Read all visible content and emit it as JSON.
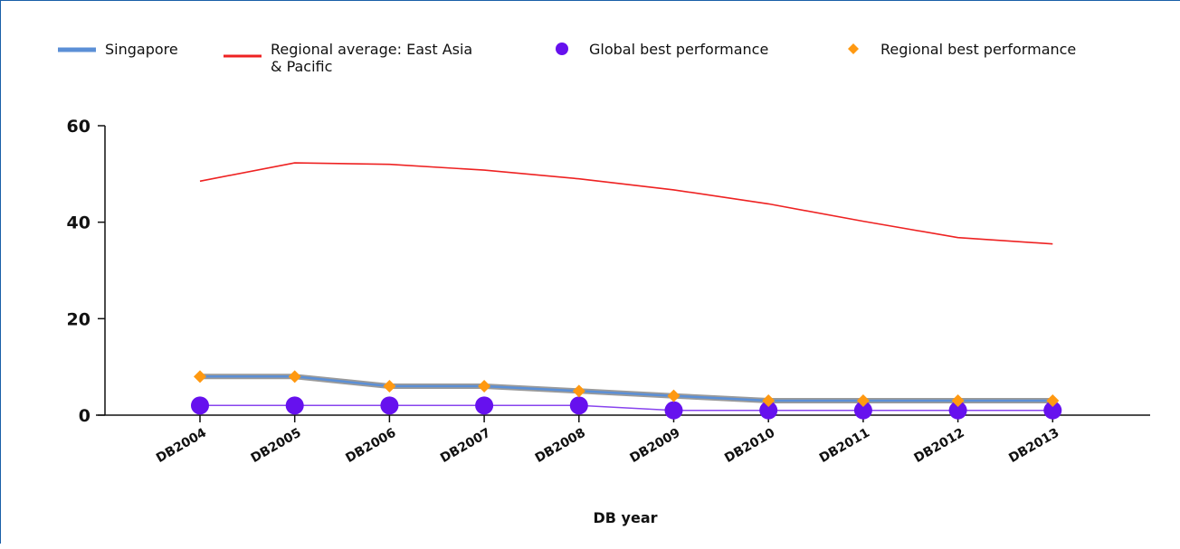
{
  "chart_data": {
    "type": "line",
    "title": "",
    "xlabel": "DB year",
    "ylabel": "",
    "ylim": [
      0,
      60
    ],
    "yticks": [
      0,
      20,
      40,
      60
    ],
    "grid": false,
    "legend_position": "top",
    "categories": [
      "DB2004",
      "DB2005",
      "DB2006",
      "DB2007",
      "DB2008",
      "DB2009",
      "DB2010",
      "DB2011",
      "DB2012",
      "DB2013"
    ],
    "series": [
      {
        "name": "Singapore",
        "style": "line",
        "color": "#5b8fd6",
        "values": [
          8,
          8,
          6,
          6,
          5,
          4,
          3,
          3,
          3,
          3
        ]
      },
      {
        "name": "Regional average: East Asia & Pacific",
        "style": "line",
        "color": "#ee2222",
        "values": [
          48.5,
          52.3,
          52,
          50.8,
          49,
          46.7,
          43.8,
          40.2,
          36.8,
          35.5
        ]
      },
      {
        "name": "Global best performance",
        "style": "markers",
        "marker": "circle",
        "color": "#6611ee",
        "values": [
          2,
          2,
          2,
          2,
          2,
          1,
          1,
          1,
          1,
          1
        ]
      },
      {
        "name": "Regional best performance",
        "style": "markers",
        "marker": "diamond",
        "color": "#ff9911",
        "values": [
          8,
          8,
          6,
          6,
          5,
          4,
          3,
          3,
          3,
          3
        ]
      }
    ]
  }
}
